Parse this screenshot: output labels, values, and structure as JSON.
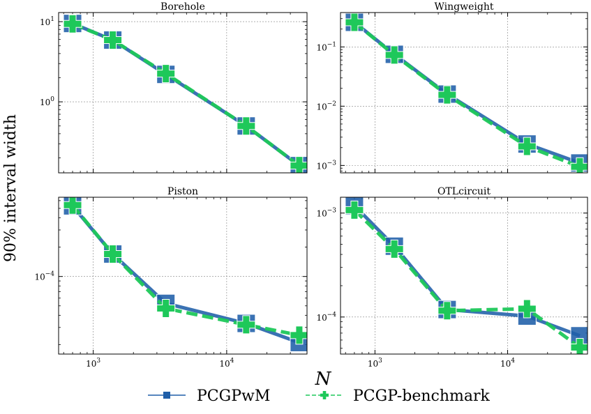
{
  "figure": {
    "ylabel": "90% interval width",
    "xlabel": "N",
    "legend": [
      {
        "label": "PCGPwM",
        "color": "#1f5ea8",
        "marker": "square",
        "linestyle": "solid"
      },
      {
        "label": "PCGP-benchmark",
        "color": "#1ec85a",
        "marker": "plus",
        "linestyle": "dashed"
      }
    ]
  },
  "chart_data": [
    {
      "type": "line",
      "title": "Borehole",
      "xscale": "log",
      "yscale": "log",
      "xlim": [
        550,
        40000
      ],
      "ylim": [
        0.13,
        13
      ],
      "x_ticks": [
        1000,
        10000
      ],
      "x_tick_labels": [
        "",
        ""
      ],
      "y_ticks": [
        1,
        10
      ],
      "y_tick_labels": [
        "10^0",
        "10^1"
      ],
      "x": [
        700,
        1400,
        3500,
        14000,
        35000
      ],
      "series": [
        {
          "name": "PCGPwM",
          "values": [
            9.5,
            5.9,
            2.2,
            0.5,
            0.16
          ]
        },
        {
          "name": "PCGP-benchmark",
          "values": [
            9.4,
            5.9,
            2.25,
            0.5,
            0.16
          ]
        }
      ]
    },
    {
      "type": "line",
      "title": "Wingweight",
      "xscale": "log",
      "yscale": "log",
      "xlim": [
        550,
        40000
      ],
      "ylim": [
        0.00075,
        0.38
      ],
      "x_ticks": [
        1000,
        10000
      ],
      "x_tick_labels": [
        "",
        ""
      ],
      "y_ticks": [
        0.001,
        0.01,
        0.1
      ],
      "y_tick_labels": [
        "10^-3",
        "10^-2",
        "10^-1"
      ],
      "x": [
        700,
        1400,
        3500,
        14000,
        35000
      ],
      "series": [
        {
          "name": "PCGPwM",
          "values": [
            0.26,
            0.075,
            0.016,
            0.0023,
            0.0011
          ]
        },
        {
          "name": "PCGP-benchmark",
          "values": [
            0.26,
            0.073,
            0.0155,
            0.0021,
            0.00095
          ]
        }
      ]
    },
    {
      "type": "line",
      "title": "Piston",
      "xscale": "log",
      "yscale": "log",
      "xlim": [
        550,
        40000
      ],
      "ylim": [
        1.6e-05,
        0.00065
      ],
      "x_ticks": [
        1000,
        10000
      ],
      "x_tick_labels": [
        "10^3",
        "10^4"
      ],
      "y_ticks": [
        0.0001
      ],
      "y_tick_labels": [
        "10^-4"
      ],
      "x": [
        700,
        1400,
        3500,
        14000,
        35000
      ],
      "series": [
        {
          "name": "PCGPwM",
          "values": [
            0.00053,
            0.00017,
            5.3e-05,
            3.3e-05,
            2.1e-05
          ]
        },
        {
          "name": "PCGP-benchmark",
          "values": [
            0.00054,
            0.00017,
            4.7e-05,
            3.2e-05,
            2.5e-05
          ]
        }
      ]
    },
    {
      "type": "line",
      "title": "OTLcircuit",
      "xscale": "log",
      "yscale": "log",
      "xlim": [
        550,
        40000
      ],
      "ylim": [
        4.4e-05,
        0.00142
      ],
      "x_ticks": [
        1000,
        10000
      ],
      "x_tick_labels": [
        "10^3",
        "10^4"
      ],
      "y_ticks": [
        0.0001,
        0.001
      ],
      "y_tick_labels": [
        "10^-4",
        "10^-3"
      ],
      "x": [
        700,
        1400,
        3500,
        14000,
        35000
      ],
      "series": [
        {
          "name": "PCGPwM",
          "values": [
            0.00118,
            0.00048,
            0.000118,
            0.000102,
            6.6e-05
          ]
        },
        {
          "name": "PCGP-benchmark",
          "values": [
            0.00107,
            0.00045,
            0.000115,
            0.00012,
            5.1e-05
          ]
        }
      ]
    }
  ]
}
